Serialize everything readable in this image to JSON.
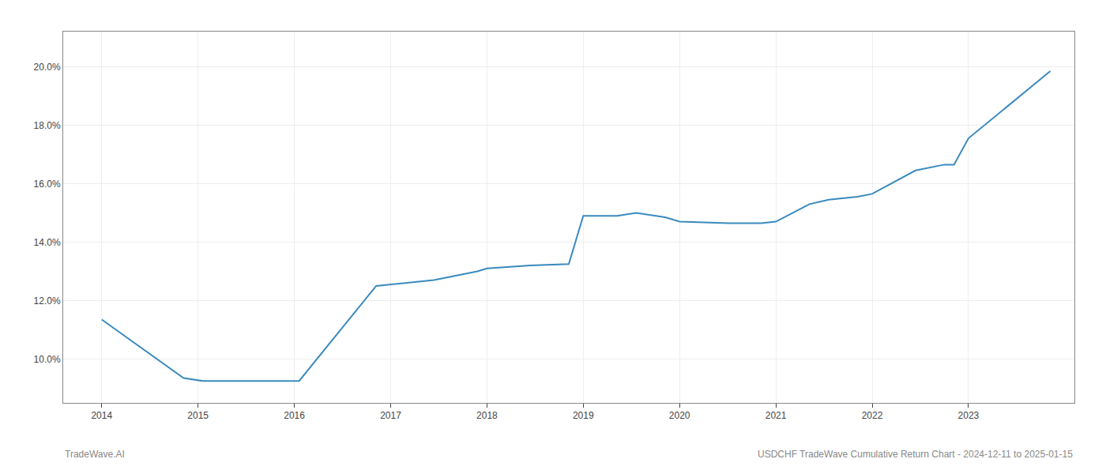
{
  "chart_data": {
    "type": "line",
    "x": [
      2014.0,
      2014.85,
      2015.05,
      2015.85,
      2016.05,
      2016.85,
      2017.0,
      2017.45,
      2017.9,
      2018.0,
      2018.45,
      2018.85,
      2019.0,
      2019.35,
      2019.55,
      2019.85,
      2020.0,
      2020.5,
      2020.85,
      2021.0,
      2021.35,
      2021.55,
      2021.85,
      2022.0,
      2022.45,
      2022.75,
      2022.85,
      2023.0,
      2023.85
    ],
    "values": [
      11.35,
      9.35,
      9.25,
      9.25,
      9.25,
      12.5,
      12.55,
      12.7,
      13.0,
      13.1,
      13.2,
      13.25,
      14.9,
      14.9,
      15.0,
      14.85,
      14.7,
      14.65,
      14.65,
      14.7,
      15.3,
      15.45,
      15.55,
      15.65,
      16.45,
      16.65,
      16.65,
      17.55,
      19.85
    ],
    "color": "#3a8abf",
    "xlim": [
      2013.6,
      2024.1
    ],
    "xticks": [
      2014,
      2015,
      2016,
      2017,
      2018,
      2019,
      2020,
      2021,
      2022,
      2023
    ],
    "ylim": [
      8.5,
      21.2
    ],
    "yticks": [
      {
        "value": 10.0,
        "label": "10.0%"
      },
      {
        "value": 12.0,
        "label": "12.0%"
      },
      {
        "value": 14.0,
        "label": "14.0%"
      },
      {
        "value": 16.0,
        "label": "16.0%"
      },
      {
        "value": 18.0,
        "label": "18.0%"
      },
      {
        "value": 20.0,
        "label": "20.0%"
      }
    ],
    "grid": true,
    "annotations": [
      "TradeWave.AI",
      "USDCHF TradeWave Cumulative Return Chart - 2024-12-11 to 2025-01-15"
    ]
  }
}
